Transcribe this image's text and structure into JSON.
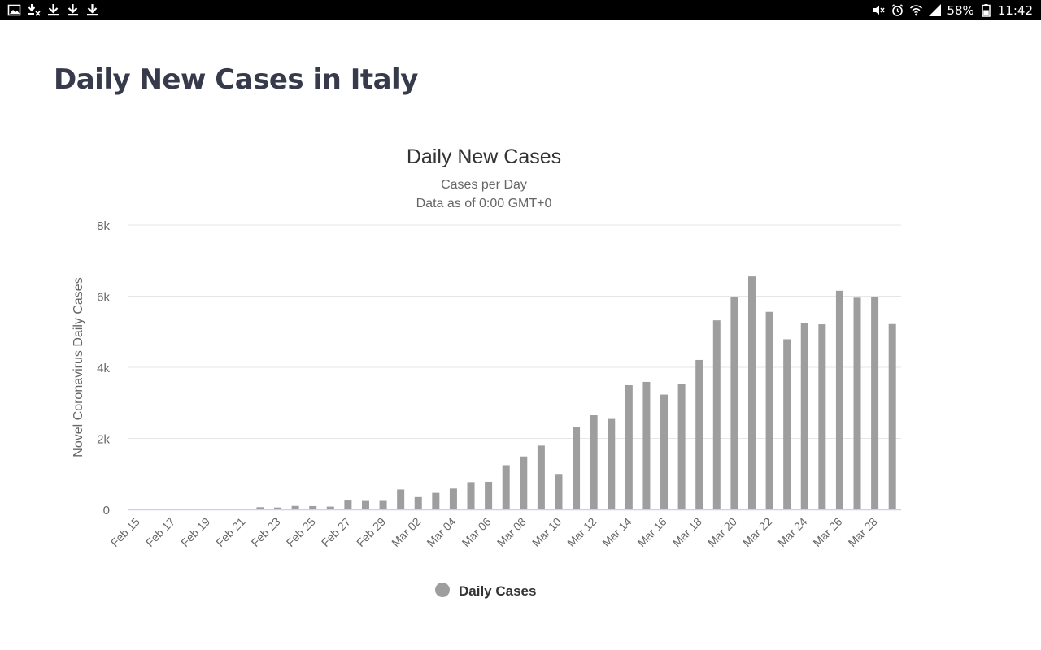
{
  "status_bar": {
    "left_icons": [
      "image-icon",
      "download-cancel-icon",
      "download-icon",
      "download-icon",
      "download-icon"
    ],
    "right_icons": [
      "mute-icon",
      "alarm-icon",
      "wifi-icon",
      "signal-icon"
    ],
    "battery": "58%",
    "time": "11:42"
  },
  "page": {
    "title": "Daily New Cases in Italy"
  },
  "chart_data": {
    "type": "bar",
    "title": "Daily New Cases",
    "subtitle": "Cases per Day",
    "subtitle2": "Data as of 0:00 GMT+0",
    "ylabel": "Novel Coronavirus Daily Cases",
    "xlabel": "",
    "ylim": [
      0,
      8000
    ],
    "yticks": [
      {
        "value": 0,
        "label": "0"
      },
      {
        "value": 2000,
        "label": "2k"
      },
      {
        "value": 4000,
        "label": "4k"
      },
      {
        "value": 6000,
        "label": "6k"
      },
      {
        "value": 8000,
        "label": "8k"
      }
    ],
    "grid": true,
    "bar_color": "#9e9e9e",
    "categories": [
      "Feb 15",
      "Feb 16",
      "Feb 17",
      "Feb 18",
      "Feb 19",
      "Feb 20",
      "Feb 21",
      "Feb 22",
      "Feb 23",
      "Feb 24",
      "Feb 25",
      "Feb 26",
      "Feb 27",
      "Feb 28",
      "Feb 29",
      "Mar 01",
      "Mar 02",
      "Mar 03",
      "Mar 04",
      "Mar 05",
      "Mar 06",
      "Mar 07",
      "Mar 08",
      "Mar 09",
      "Mar 10",
      "Mar 11",
      "Mar 12",
      "Mar 13",
      "Mar 14",
      "Mar 15",
      "Mar 16",
      "Mar 17",
      "Mar 18",
      "Mar 19",
      "Mar 20",
      "Mar 21",
      "Mar 22",
      "Mar 23",
      "Mar 24",
      "Mar 25",
      "Mar 26",
      "Mar 27",
      "Mar 28",
      "Mar 29"
    ],
    "tick_labels": [
      "Feb 15",
      "Feb 17",
      "Feb 19",
      "Feb 21",
      "Feb 23",
      "Feb 25",
      "Feb 27",
      "Feb 29",
      "Mar 02",
      "Mar 04",
      "Mar 06",
      "Mar 08",
      "Mar 10",
      "Mar 12",
      "Mar 14",
      "Mar 16",
      "Mar 18",
      "Mar 20",
      "Mar 22",
      "Mar 24",
      "Mar 26",
      "Mar 28"
    ],
    "series": [
      {
        "name": "Daily Cases",
        "values": [
          0,
          0,
          0,
          0,
          0,
          0,
          0,
          62,
          53,
          97,
          93,
          78,
          250,
          238,
          240,
          561,
          347,
          466,
          587,
          769,
          778,
          1247,
          1492,
          1797,
          977,
          2313,
          2651,
          2547,
          3497,
          3590,
          3233,
          3526,
          4207,
          5322,
          5986,
          6557,
          5560,
          4789,
          5249,
          5210,
          6153,
          5959,
          5974,
          5217
        ]
      }
    ],
    "legend": {
      "position": "bottom-center",
      "label": "Daily Cases"
    }
  }
}
